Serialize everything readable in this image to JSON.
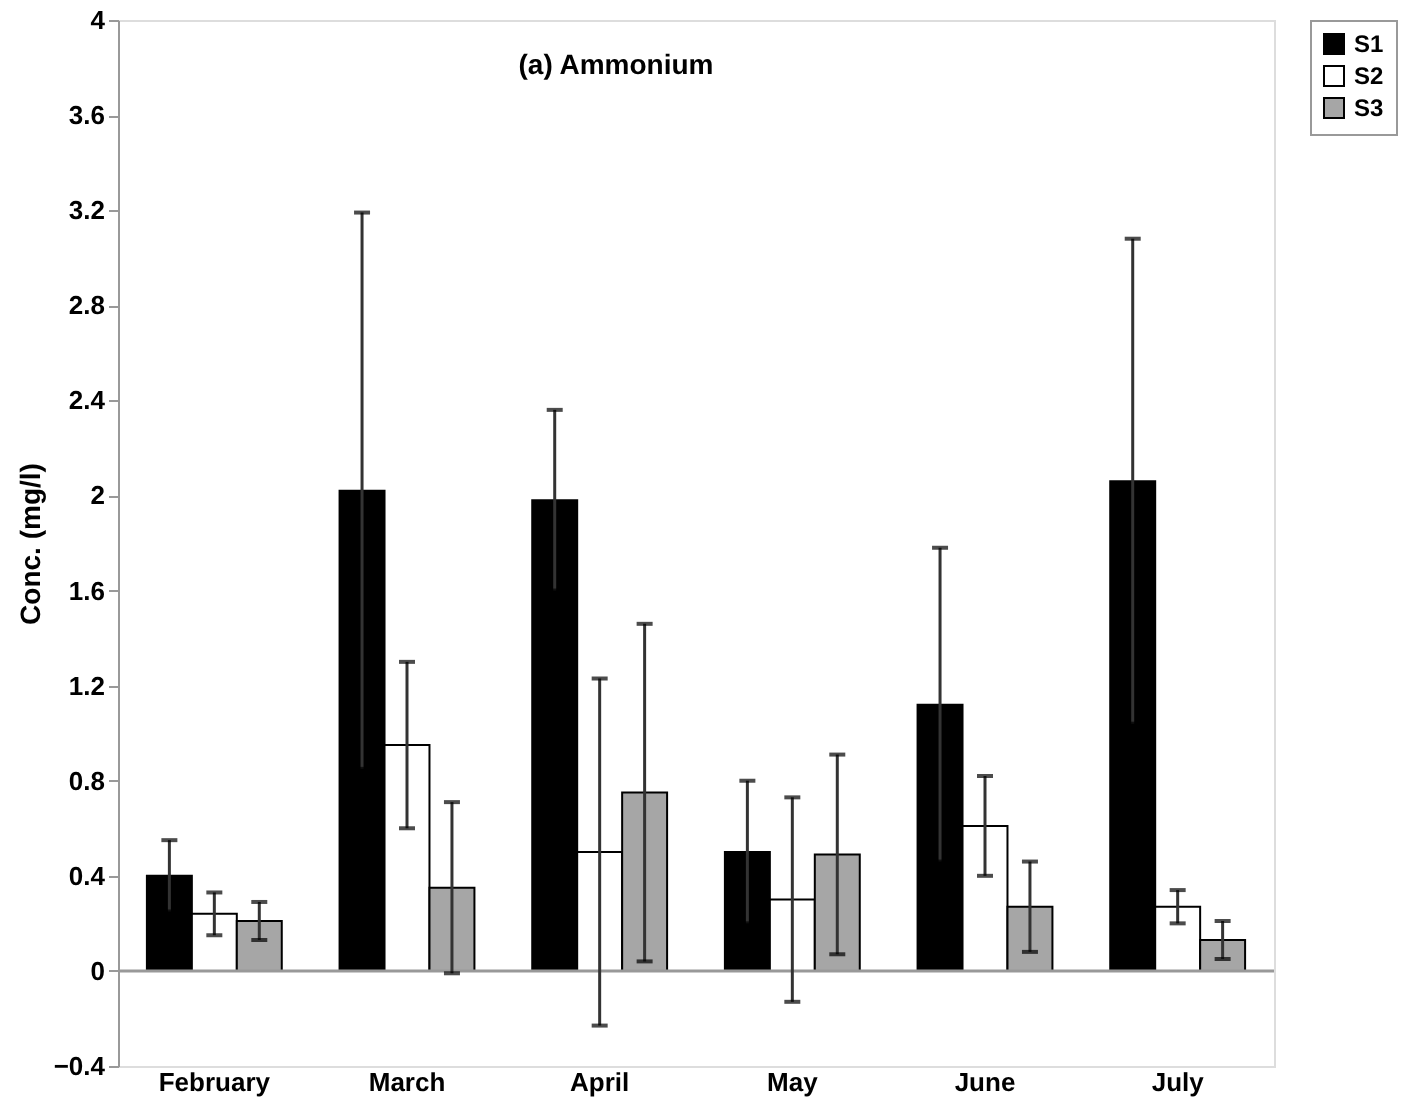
{
  "chart_data": {
    "type": "bar",
    "title": "(a)   Ammonium",
    "ylabel": "Conc. (mg/l)",
    "categories": [
      "February",
      "March",
      "April",
      "May",
      "June",
      "July"
    ],
    "series": [
      {
        "name": "S1",
        "color": "#000000",
        "values": [
          0.4,
          2.02,
          1.98,
          0.5,
          1.12,
          2.06
        ],
        "errors": [
          0.15,
          1.17,
          0.38,
          0.3,
          0.66,
          1.02
        ]
      },
      {
        "name": "S2",
        "color": "#ffffff",
        "values": [
          0.24,
          0.95,
          0.5,
          0.3,
          0.61,
          0.27
        ],
        "errors": [
          0.09,
          0.35,
          0.73,
          0.43,
          0.21,
          0.07
        ]
      },
      {
        "name": "S3",
        "color": "#a6a6a6",
        "values": [
          0.21,
          0.35,
          0.75,
          0.49,
          0.27,
          0.13
        ],
        "errors": [
          0.08,
          0.36,
          0.71,
          0.42,
          0.19,
          0.08
        ]
      }
    ],
    "ylim": [
      -0.4,
      4
    ],
    "yticks": [
      -0.4,
      0,
      0.4,
      0.8,
      1.2,
      1.6,
      2,
      2.4,
      2.8,
      3.2,
      3.6,
      4
    ],
    "ref_lines": [
      {
        "axis": "y",
        "value": 0,
        "color": "#999999"
      }
    ],
    "legend": "right",
    "grid": false
  }
}
